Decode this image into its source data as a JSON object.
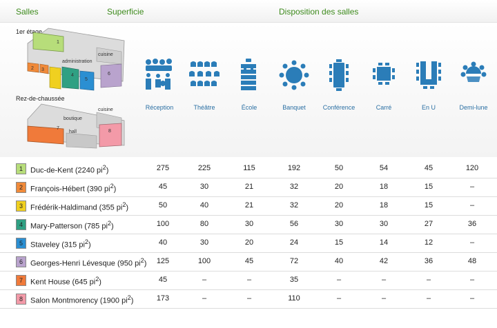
{
  "header": {
    "salles": "Salles",
    "superficie": "Superficie",
    "disposition": "Disposition des salles"
  },
  "floors": {
    "first": "1er étage",
    "ground": "Rez-de-chaussée"
  },
  "plan_labels": {
    "room1": "1",
    "room2": "2",
    "room3": "3",
    "room4": "4",
    "room5": "5",
    "room6": "6",
    "room7": "7",
    "room8": "8",
    "cuisine": "cuisine",
    "administration": "administration",
    "boutique": "boutique",
    "hall": "hall"
  },
  "layouts": [
    {
      "label": "Réception",
      "icon": "reception-icon"
    },
    {
      "label": "Théâtre",
      "icon": "theatre-icon"
    },
    {
      "label": "École",
      "icon": "school-icon"
    },
    {
      "label": "Banquet",
      "icon": "banquet-icon"
    },
    {
      "label": "Conférence",
      "icon": "conference-icon"
    },
    {
      "label": "Carré",
      "icon": "square-icon"
    },
    {
      "label": "En U",
      "icon": "u-shape-icon"
    },
    {
      "label": "Demi-lune",
      "icon": "half-moon-icon"
    }
  ],
  "colors": {
    "header_text": "#3d8a1c",
    "layout_icon": "#2b7db8",
    "room_colors": [
      "#b7dd7a",
      "#f08a3a",
      "#f0d020",
      "#2fa083",
      "#2b8fd2",
      "#b9a3cd",
      "#f07a3a",
      "#f39aa8"
    ]
  },
  "rooms": [
    {
      "num": "1",
      "name": "Duc-de-Kent",
      "area": "2240",
      "values": [
        "275",
        "225",
        "115",
        "192",
        "50",
        "54",
        "45",
        "120"
      ]
    },
    {
      "num": "2",
      "name": "François-Hébert",
      "area": "390",
      "values": [
        "45",
        "30",
        "21",
        "32",
        "20",
        "18",
        "15",
        "–"
      ]
    },
    {
      "num": "3",
      "name": "Frédérik-Haldimand",
      "area": "355",
      "values": [
        "50",
        "40",
        "21",
        "32",
        "20",
        "18",
        "15",
        "–"
      ]
    },
    {
      "num": "4",
      "name": "Mary-Patterson",
      "area": "785",
      "values": [
        "100",
        "80",
        "30",
        "56",
        "30",
        "30",
        "27",
        "36"
      ]
    },
    {
      "num": "5",
      "name": "Staveley",
      "area": "315",
      "values": [
        "40",
        "30",
        "20",
        "24",
        "15",
        "14",
        "12",
        "–"
      ]
    },
    {
      "num": "6",
      "name": "Georges-Henri Lévesque",
      "area": "950",
      "values": [
        "125",
        "100",
        "45",
        "72",
        "40",
        "42",
        "36",
        "48"
      ]
    },
    {
      "num": "7",
      "name": "Kent House",
      "area": "645",
      "values": [
        "45",
        "–",
        "–",
        "35",
        "–",
        "–",
        "–",
        "–"
      ]
    },
    {
      "num": "8",
      "name": "Salon Montmorency",
      "area": "1900",
      "values": [
        "173",
        "–",
        "–",
        "110",
        "–",
        "–",
        "–",
        "–"
      ]
    }
  ],
  "unit": "pi"
}
